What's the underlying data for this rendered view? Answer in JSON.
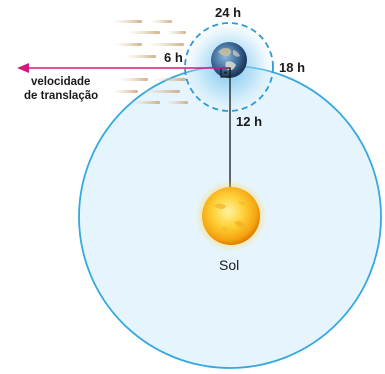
{
  "labels": {
    "h24": "24 h",
    "h18": "18 h",
    "h6": "6 h",
    "h12": "12 h",
    "velocity_line1": "velocidade",
    "velocity_line2": "de translação",
    "sun": "Sol"
  },
  "colors": {
    "orbit": "#35a8e0",
    "orbit_fill": "#e4f4fc",
    "earth_halo": "#2e9ad6",
    "arrow": "#d3187f",
    "sun_core": "#ffd23a",
    "sun_edge": "#f08a00"
  },
  "icons": {
    "earth": "earth-icon",
    "sun": "sun-icon",
    "arrow": "arrow-left-icon",
    "right_angle": "right-angle-marker-icon"
  }
}
